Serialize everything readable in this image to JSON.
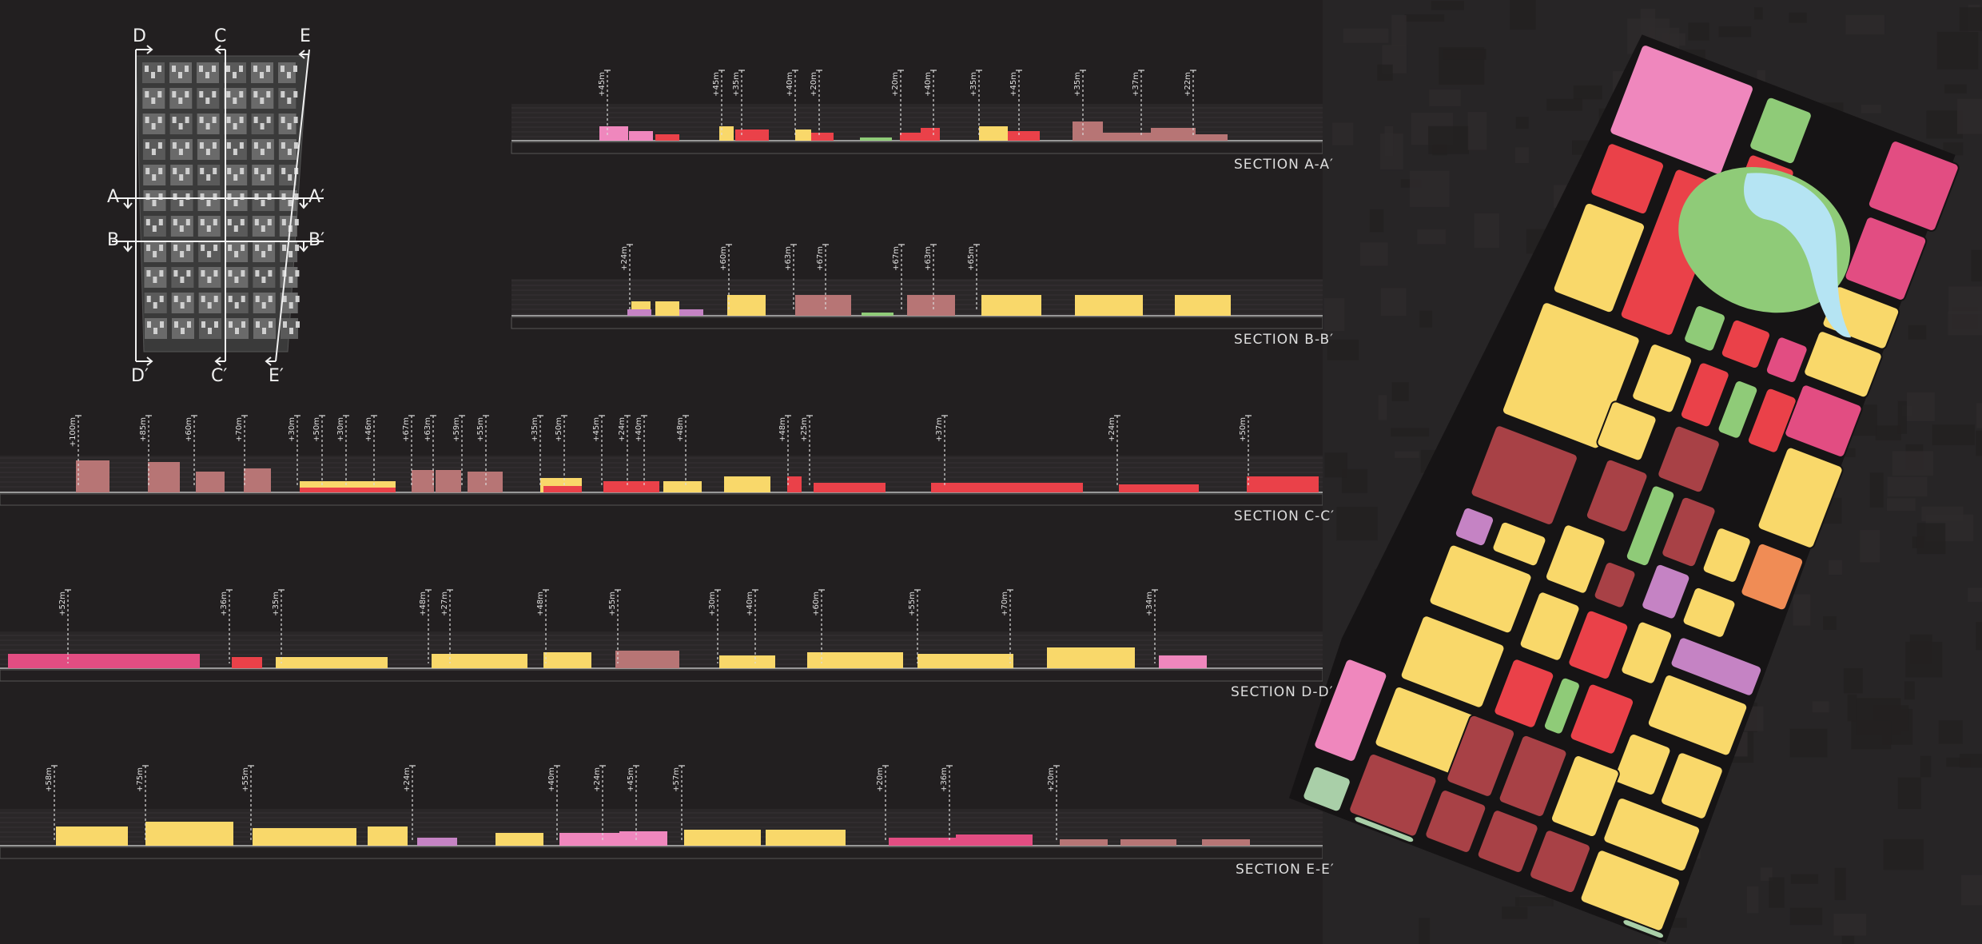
{
  "key_map": {
    "letters_top": [
      "D",
      "C",
      "E"
    ],
    "letters_bottom": [
      "D′",
      "C′",
      "E′"
    ],
    "letters_left": [
      "A",
      "B"
    ],
    "letters_right": [
      "A′",
      "B′"
    ]
  },
  "landuse_colors": {
    "residential": "#f9d86a",
    "commercial": "#ea4149",
    "mixed_use": "#a84146",
    "office": "#e24d82",
    "office_light": "#ef87bd",
    "public_service": "#c583c4",
    "green_space": "#8fcb78",
    "water": "#b5e4f3",
    "industrial": "#f08c55",
    "institutional_pale": "#f3c5dc",
    "reserve": "#cccccc",
    "buffer_green": "#a9cfa8",
    "section_mass": "#b77575"
  },
  "sections": [
    {
      "id": "A",
      "title": "SECTION  A-A′",
      "heights": [
        "+45m",
        "+45m",
        "+35m",
        "+40m",
        "+20m",
        "+20m",
        "+40m",
        "+35m",
        "+45m",
        "+35m",
        "+37m",
        "+22m"
      ]
    },
    {
      "id": "B",
      "title": "SECTION  B-B′",
      "heights": [
        "+24m",
        "+60m",
        "+63m",
        "+67m",
        "+67m",
        "+63m",
        "+65m"
      ]
    },
    {
      "id": "C",
      "title": "SECTION  C-C′",
      "heights": [
        "+100m",
        "+85m",
        "+60m",
        "+70m",
        "+30m",
        "+50m",
        "+30m",
        "+46m",
        "+67m",
        "+63m",
        "+59m",
        "+55m",
        "+35m",
        "+50m",
        "+45m",
        "+24m",
        "+40m",
        "+48m",
        "+48m",
        "+25m",
        "+37m",
        "+24m",
        "+50m"
      ]
    },
    {
      "id": "D",
      "title": "SECTION  D-D′",
      "heights": [
        "+52m",
        "+36m",
        "+35m",
        "+48m",
        "+27m",
        "+48m",
        "+55m",
        "+30m",
        "+40m",
        "+60m",
        "+55m",
        "+70m",
        "+34m"
      ]
    },
    {
      "id": "E",
      "title": "SECTION  E-E′",
      "heights": [
        "+58m",
        "+75m",
        "+55m",
        "+24m",
        "+40m",
        "+24m",
        "+45m",
        "+57m",
        "+20m",
        "+36m",
        "+20m"
      ]
    }
  ]
}
